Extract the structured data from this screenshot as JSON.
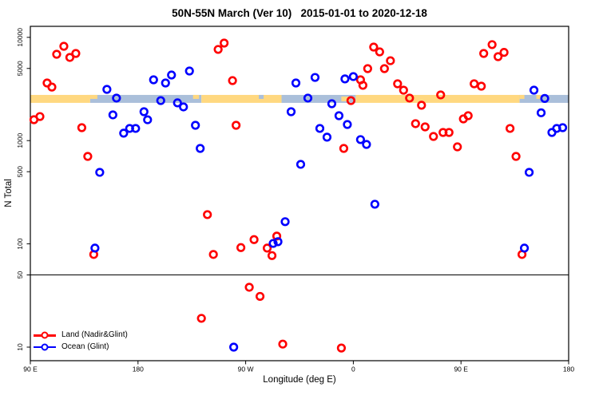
{
  "title": "50N-55N March (Ver 10)   2015-01-01 to 2020-12-18",
  "legend": {
    "items": [
      {
        "label": "Land (Nadir&Glint)",
        "color": "#ff0000"
      },
      {
        "label": "Ocean (Glint)",
        "color": "#0000ff"
      }
    ]
  },
  "chart_data": {
    "type": "scatter",
    "title": "50N-55N March (Ver 10)   2015-01-01 to 2020-12-18",
    "xlabel": "Longitude (deg E)",
    "ylabel": "N Total",
    "x_scale": "linear",
    "y_scale": "log",
    "xlim": [
      90,
      540
    ],
    "ylim": [
      7.4,
      12800
    ],
    "grid": false,
    "legend_position": "bottom-left",
    "x_ticks": [
      {
        "value": 90,
        "label": "90 E"
      },
      {
        "value": 180,
        "label": "180"
      },
      {
        "value": 270,
        "label": "90 W"
      },
      {
        "value": 360,
        "label": "0"
      },
      {
        "value": 450,
        "label": "90 E"
      },
      {
        "value": 540,
        "label": "180"
      }
    ],
    "y_ticks": [
      {
        "value": 10,
        "label": "10"
      },
      {
        "value": 50,
        "label": "50"
      },
      {
        "value": 100,
        "label": "100"
      },
      {
        "value": 500,
        "label": "500"
      },
      {
        "value": 1000,
        "label": "1000"
      },
      {
        "value": 5000,
        "label": "5000"
      },
      {
        "value": 10000,
        "label": "10000"
      }
    ],
    "reference_line_y": 50,
    "land_ocean_strip": {
      "description": "land/ocean mask band drawn across the plot",
      "n_range": [
        2320,
        2770
      ],
      "colors": {
        "land": "#ffd880",
        "ocean": "#aabfda"
      },
      "segments": [
        {
          "from": 90,
          "to": 140,
          "type": "land"
        },
        {
          "from": 140,
          "to": 233,
          "type": "ocean"
        },
        {
          "from": 233,
          "to": 300,
          "type": "land"
        },
        {
          "from": 300,
          "to": 362,
          "type": "ocean"
        },
        {
          "from": 362,
          "to": 499,
          "type": "land"
        },
        {
          "from": 499,
          "to": 540,
          "type": "ocean"
        }
      ],
      "speckles": [
        {
          "from": 137,
          "to": 146,
          "part": "top",
          "type": "land"
        },
        {
          "from": 226,
          "to": 231,
          "part": "top",
          "type": "land"
        },
        {
          "from": 281,
          "to": 285,
          "part": "top",
          "type": "ocean"
        },
        {
          "from": 350,
          "to": 357,
          "part": "mid",
          "type": "land"
        },
        {
          "from": 499,
          "to": 503,
          "part": "top",
          "type": "land"
        },
        {
          "from": 513,
          "to": 517,
          "part": "top",
          "type": "land"
        }
      ]
    },
    "series": [
      {
        "name": "Land (Nadir&Glint)",
        "color": "#ff0000",
        "points": [
          [
            112,
            6860
          ],
          [
            118,
            8190
          ],
          [
            123,
            6390
          ],
          [
            128,
            6980
          ],
          [
            104,
            3615
          ],
          [
            108,
            3300
          ],
          [
            93,
            1594
          ],
          [
            98,
            1710
          ],
          [
            133,
            1334
          ],
          [
            138,
            703
          ],
          [
            143,
            79
          ],
          [
            247,
            7640
          ],
          [
            252,
            8800
          ],
          [
            259,
            3810
          ],
          [
            262,
            1407
          ],
          [
            238,
            192
          ],
          [
            243,
            79
          ],
          [
            266,
            92
          ],
          [
            277,
            110
          ],
          [
            288,
            91
          ],
          [
            296,
            119
          ],
          [
            292,
            77
          ],
          [
            273,
            38
          ],
          [
            282,
            31
          ],
          [
            233,
            19
          ],
          [
            301,
            10.7
          ],
          [
            377,
            8050
          ],
          [
            382,
            7230
          ],
          [
            391,
            5940
          ],
          [
            372,
            4980
          ],
          [
            386,
            4980
          ],
          [
            366,
            3880
          ],
          [
            368,
            3430
          ],
          [
            397,
            3550
          ],
          [
            402,
            3080
          ],
          [
            407,
            2580
          ],
          [
            417,
            2200
          ],
          [
            433,
            2770
          ],
          [
            358,
            2440
          ],
          [
            352,
            840
          ],
          [
            350,
            9.8
          ],
          [
            461,
            3550
          ],
          [
            467,
            3365
          ],
          [
            476,
            8500
          ],
          [
            469,
            6980
          ],
          [
            481,
            6500
          ],
          [
            486,
            7150
          ],
          [
            456,
            1742
          ],
          [
            452,
            1622
          ],
          [
            412,
            1459
          ],
          [
            420,
            1358
          ],
          [
            427,
            1097
          ],
          [
            435,
            1199
          ],
          [
            440,
            1199
          ],
          [
            447,
            870
          ],
          [
            491,
            1312
          ],
          [
            496,
            703
          ],
          [
            501,
            79
          ]
        ]
      },
      {
        "name": "Ocean (Glint)",
        "color": "#0000ff",
        "points": [
          [
            154,
            3135
          ],
          [
            162,
            2580
          ],
          [
            193,
            3880
          ],
          [
            203,
            3615
          ],
          [
            208,
            4315
          ],
          [
            223,
            4720
          ],
          [
            199,
            2440
          ],
          [
            213,
            2320
          ],
          [
            218,
            2120
          ],
          [
            159,
            1775
          ],
          [
            185,
            1905
          ],
          [
            188,
            1592
          ],
          [
            168,
            1180
          ],
          [
            173,
            1312
          ],
          [
            178,
            1312
          ],
          [
            228,
            1407
          ],
          [
            232,
            840
          ],
          [
            148,
            493
          ],
          [
            144,
            91
          ],
          [
            308,
            1905
          ],
          [
            312,
            3615
          ],
          [
            316,
            589
          ],
          [
            322,
            2580
          ],
          [
            328,
            4090
          ],
          [
            342,
            2275
          ],
          [
            348,
            1742
          ],
          [
            353,
            3960
          ],
          [
            355,
            1432
          ],
          [
            332,
            1312
          ],
          [
            338,
            1080
          ],
          [
            360,
            4170
          ],
          [
            366,
            1023
          ],
          [
            371,
            918
          ],
          [
            293,
            101
          ],
          [
            297,
            105
          ],
          [
            303,
            164
          ],
          [
            260,
            10
          ],
          [
            378,
            242
          ],
          [
            511,
            3080
          ],
          [
            520,
            2560
          ],
          [
            517,
            1860
          ],
          [
            526,
            1199
          ],
          [
            530,
            1312
          ],
          [
            535,
            1334
          ],
          [
            507,
            493
          ],
          [
            503,
            91
          ]
        ]
      }
    ]
  }
}
